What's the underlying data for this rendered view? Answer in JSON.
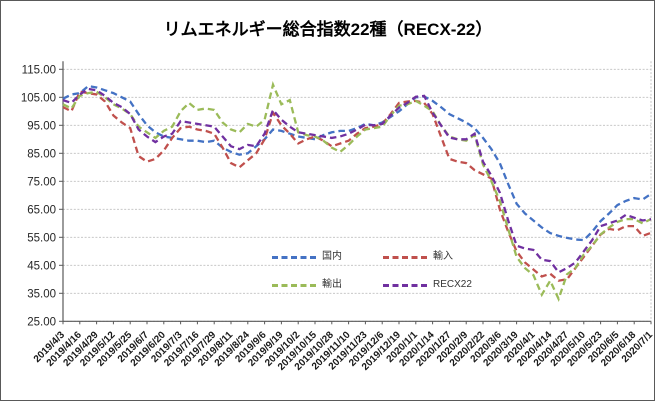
{
  "chart_data": {
    "type": "line",
    "title": "リムエネルギー総合指数22種（RECX-22）",
    "xlabel": "",
    "ylabel": "",
    "ylim": [
      25,
      115
    ],
    "grid": true,
    "line_style": "dashed",
    "legend_position": "inside-bottom",
    "y_ticks": [
      "115.00",
      "105.00",
      "95.00",
      "85.00",
      "75.00",
      "65.00",
      "55.00",
      "45.00",
      "35.00",
      "25.00"
    ],
    "x_tick_labels": [
      "2019/4/3",
      "2019/4/16",
      "2019/4/29",
      "2019/5/12",
      "2019/5/25",
      "2019/6/7",
      "2019/6/20",
      "2019/7/3",
      "2019/7/16",
      "2019/7/29",
      "2019/8/11",
      "2019/8/24",
      "2019/9/6",
      "2019/9/19",
      "2019/10/2",
      "2019/10/15",
      "2019/10/28",
      "2019/11/10",
      "2019/11/23",
      "2019/12/6",
      "2019/12/19",
      "2020/1/1",
      "2020/1/14",
      "2020/1/27",
      "2020/2/9",
      "2020/2/22",
      "2020/3/6",
      "2020/3/19",
      "2020/4/1",
      "2020/4/14",
      "2020/4/27",
      "2020/5/10",
      "2020/5/23",
      "2020/6/5",
      "2020/6/18",
      "2020/7/1"
    ],
    "series": [
      {
        "name": "国内",
        "color": "#4472C4",
        "values": [
          104.5,
          106,
          106.5,
          109,
          108.5,
          107.5,
          106.5,
          105,
          103.5,
          99,
          95,
          92.5,
          91,
          90.5,
          90,
          89.5,
          89.5,
          89,
          89.5,
          87,
          85.5,
          84.5,
          85,
          87.5,
          90,
          93.5,
          93,
          92,
          91,
          90.5,
          90,
          91.5,
          92.5,
          93,
          93,
          94,
          95.5,
          95,
          96,
          98,
          100,
          102.5,
          105,
          105.3,
          103.7,
          101.5,
          99,
          97.5,
          96,
          94,
          90.5,
          86.5,
          81.5,
          74,
          67,
          63.5,
          61,
          58.5,
          56.5,
          55.5,
          54.8,
          54.2,
          54,
          57,
          60.8,
          63.5,
          66.5,
          68,
          69,
          68.5,
          70.5
        ]
      },
      {
        "name": "輸入",
        "color": "#C0504D",
        "values": [
          101.5,
          100,
          107,
          106.5,
          106,
          103.5,
          98.5,
          96,
          94,
          84,
          82,
          83,
          86,
          90.5,
          94,
          94.5,
          93.5,
          93,
          92,
          87,
          81.5,
          80,
          82.5,
          85,
          90,
          99.5,
          95,
          92,
          88.5,
          90,
          91,
          89.5,
          87.5,
          88.5,
          89.5,
          92,
          94,
          94.5,
          95.5,
          99,
          103,
          103.5,
          103.7,
          103,
          99,
          91,
          83,
          82,
          81.5,
          79,
          77.5,
          76,
          65,
          57,
          50,
          46,
          43.5,
          41,
          42,
          39.5,
          40,
          44,
          48,
          52,
          56,
          58,
          57.5,
          59,
          59,
          55.5,
          56.6
        ]
      },
      {
        "name": "輸出",
        "color": "#9BBB59",
        "values": [
          102.5,
          101,
          105.5,
          106.5,
          107,
          105,
          102.5,
          101,
          99,
          94.5,
          92.5,
          90.5,
          93,
          94.5,
          100,
          103,
          100.5,
          101,
          100.5,
          96,
          93.5,
          92.5,
          95.5,
          94.5,
          97,
          109.5,
          102.5,
          104,
          92.5,
          91.5,
          91,
          89.5,
          87,
          85.5,
          88,
          91,
          93.5,
          94,
          94.5,
          98.5,
          102,
          102.5,
          103.7,
          102,
          100,
          95,
          91,
          90,
          89.5,
          91.5,
          81,
          75,
          68,
          58,
          48,
          44,
          41.5,
          34.5,
          39.5,
          33,
          41.8,
          44,
          48.9,
          52,
          56,
          58.5,
          60.5,
          61.5,
          61.5,
          60,
          61.5
        ]
      },
      {
        "name": "RECX22",
        "color": "#7030A0",
        "values": [
          104,
          103,
          106,
          108,
          107.5,
          105.5,
          103,
          101.5,
          99,
          93.5,
          91,
          89,
          91,
          92,
          96.5,
          96,
          95.5,
          95,
          94.5,
          91,
          87.5,
          86.5,
          88,
          87.5,
          92,
          100.5,
          97,
          94.5,
          92.5,
          92,
          91.5,
          91,
          90.5,
          91,
          92,
          93.5,
          95.2,
          95,
          95.5,
          98.5,
          101.3,
          103,
          105.2,
          105.5,
          99.5,
          95,
          90.6,
          90,
          90,
          92,
          82,
          77,
          71,
          61,
          52,
          51,
          50.5,
          47,
          46.5,
          42.5,
          44,
          46,
          50,
          54,
          59,
          60,
          61,
          63,
          62,
          61,
          61.5
        ]
      }
    ]
  }
}
